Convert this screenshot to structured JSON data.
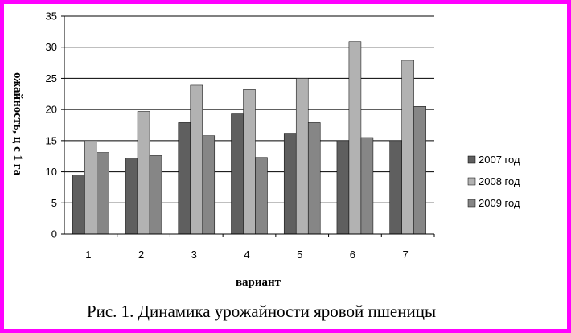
{
  "chart_data": {
    "type": "bar",
    "title": "",
    "xlabel": "вариант",
    "ylabel": "ожайность, ц с 1 га",
    "caption": "Рис. 1. Динамика урожайности яровой пшеницы",
    "categories": [
      "1",
      "2",
      "3",
      "4",
      "5",
      "6",
      "7"
    ],
    "ylim": [
      0,
      35
    ],
    "yticks": [
      0,
      5,
      10,
      15,
      20,
      25,
      30,
      35
    ],
    "grid": true,
    "legend_position": "right",
    "series": [
      {
        "name": "2007 год",
        "color": "#5f5f5f",
        "values": [
          9.5,
          12.2,
          17.9,
          19.3,
          16.2,
          15.0,
          15.0
        ]
      },
      {
        "name": "2008 год",
        "color": "#b2b2b2",
        "values": [
          15.0,
          19.7,
          23.9,
          23.2,
          25.0,
          30.9,
          27.9
        ]
      },
      {
        "name": "2009 год",
        "color": "#868686",
        "values": [
          13.1,
          12.6,
          15.8,
          12.3,
          17.9,
          15.5,
          20.5
        ]
      }
    ]
  }
}
